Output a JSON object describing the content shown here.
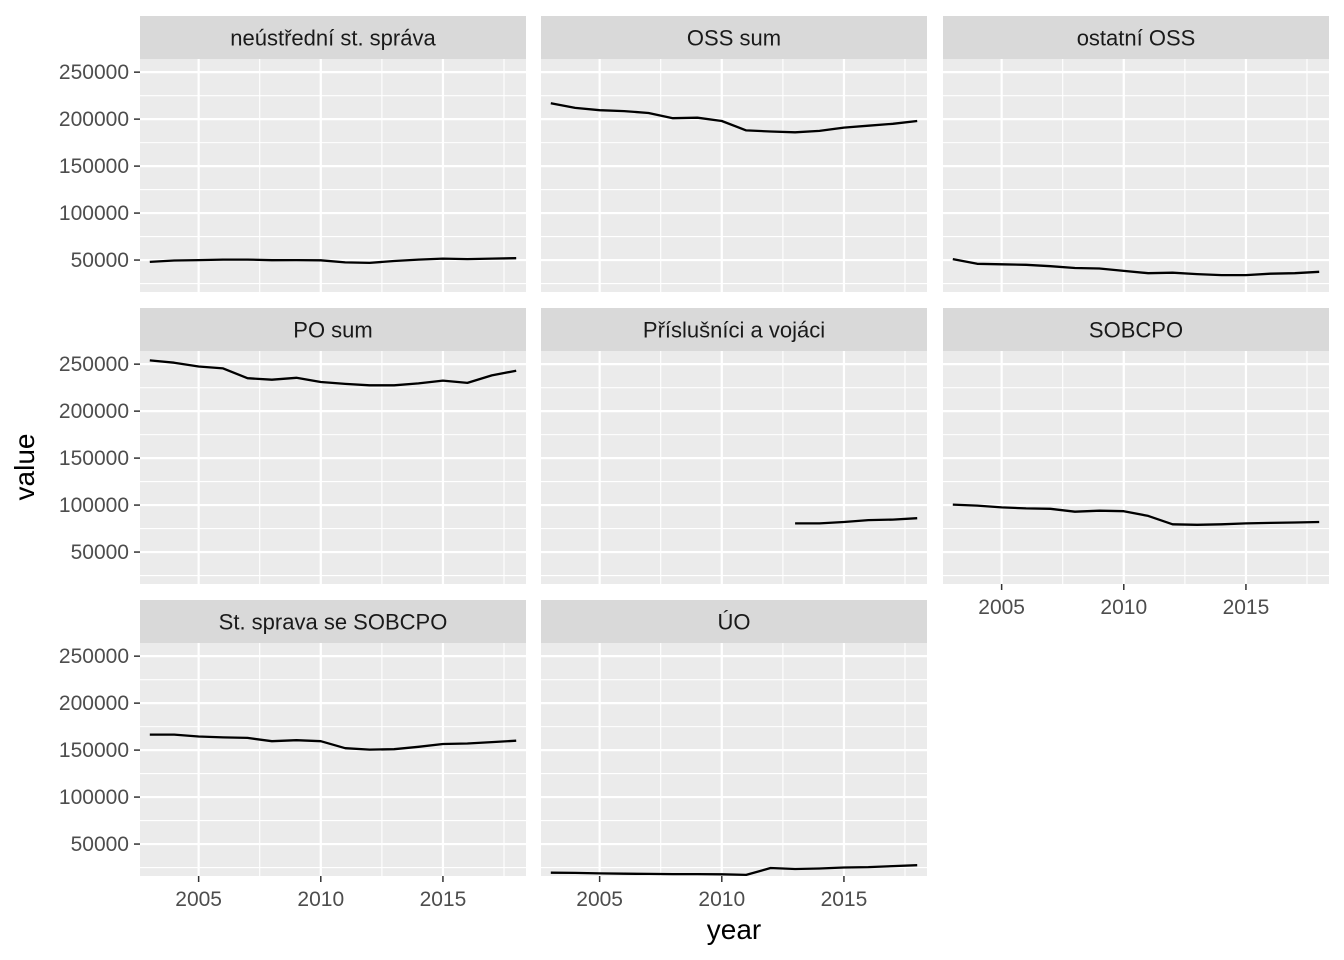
{
  "chart_data": {
    "type": "line",
    "layout": "facet_wrap",
    "xlabel": "year",
    "ylabel": "value",
    "xlim": [
      2002.6,
      2018.4
    ],
    "ylim": [
      16000,
      264000
    ],
    "x_ticks": [
      2005,
      2010,
      2015
    ],
    "y_ticks": [
      50000,
      100000,
      150000,
      200000,
      250000
    ],
    "x_tick_labels": [
      "2005",
      "2010",
      "2015"
    ],
    "y_tick_labels": [
      "50000",
      "100000",
      "150000",
      "200000",
      "250000"
    ],
    "colors": {
      "panel": "#ebebeb",
      "strip": "#d9d9d9",
      "grid": "#ffffff",
      "line": "#000000"
    },
    "panels": [
      {
        "name": "neústřední st. správa",
        "x": [
          2003,
          2004,
          2005,
          2006,
          2007,
          2008,
          2009,
          2010,
          2011,
          2012,
          2013,
          2014,
          2015,
          2016,
          2017,
          2018
        ],
        "y": [
          48000,
          49500,
          50000,
          50500,
          50500,
          49800,
          50000,
          49700,
          47500,
          47000,
          49000,
          50500,
          51500,
          51000,
          51500,
          52000
        ]
      },
      {
        "name": "OSS sum",
        "x": [
          2003,
          2004,
          2005,
          2006,
          2007,
          2008,
          2009,
          2010,
          2011,
          2012,
          2013,
          2014,
          2015,
          2016,
          2017,
          2018
        ],
        "y": [
          217000,
          212000,
          209500,
          208500,
          206500,
          201000,
          201500,
          198000,
          188000,
          186800,
          186000,
          187500,
          191000,
          193000,
          195000,
          198000
        ]
      },
      {
        "name": "ostatní OSS",
        "x": [
          2003,
          2004,
          2005,
          2006,
          2007,
          2008,
          2009,
          2010,
          2011,
          2012,
          2013,
          2014,
          2015,
          2016,
          2017,
          2018
        ],
        "y": [
          51000,
          46000,
          45500,
          45000,
          43500,
          41500,
          41000,
          38500,
          36000,
          36500,
          35000,
          34000,
          34000,
          35500,
          36000,
          37500
        ]
      },
      {
        "name": "PO sum",
        "x": [
          2003,
          2004,
          2005,
          2006,
          2007,
          2008,
          2009,
          2010,
          2011,
          2012,
          2013,
          2014,
          2015,
          2016,
          2017,
          2018
        ],
        "y": [
          254000,
          251500,
          247500,
          245500,
          235000,
          233500,
          235500,
          231000,
          229000,
          227500,
          227500,
          229500,
          232500,
          230000,
          238000,
          243000
        ]
      },
      {
        "name": "Příslušníci a vojáci",
        "x": [
          2013,
          2014,
          2015,
          2016,
          2017,
          2018
        ],
        "y": [
          80500,
          80500,
          82000,
          84000,
          84500,
          86000
        ]
      },
      {
        "name": "SOBCPO",
        "x": [
          2003,
          2004,
          2005,
          2006,
          2007,
          2008,
          2009,
          2010,
          2011,
          2012,
          2013,
          2014,
          2015,
          2016,
          2017,
          2018
        ],
        "y": [
          100500,
          99500,
          97500,
          96500,
          96000,
          93000,
          94000,
          93500,
          88500,
          79500,
          79000,
          79500,
          80500,
          81000,
          81500,
          82000
        ]
      },
      {
        "name": "St. sprava se SOBCPO",
        "x": [
          2003,
          2004,
          2005,
          2006,
          2007,
          2008,
          2009,
          2010,
          2011,
          2012,
          2013,
          2014,
          2015,
          2016,
          2017,
          2018
        ],
        "y": [
          166500,
          166500,
          164500,
          163500,
          163000,
          159500,
          160500,
          159500,
          152000,
          150500,
          151000,
          153500,
          156500,
          157000,
          158500,
          160000
        ]
      },
      {
        "name": "ÚO",
        "x": [
          2003,
          2004,
          2005,
          2006,
          2007,
          2008,
          2009,
          2010,
          2011,
          2012,
          2013,
          2014,
          2015,
          2016,
          2017,
          2018
        ],
        "y": [
          19500,
          19300,
          18800,
          18500,
          18200,
          18000,
          18000,
          17800,
          17200,
          24500,
          23500,
          24000,
          25000,
          25500,
          26500,
          27500
        ]
      }
    ]
  }
}
